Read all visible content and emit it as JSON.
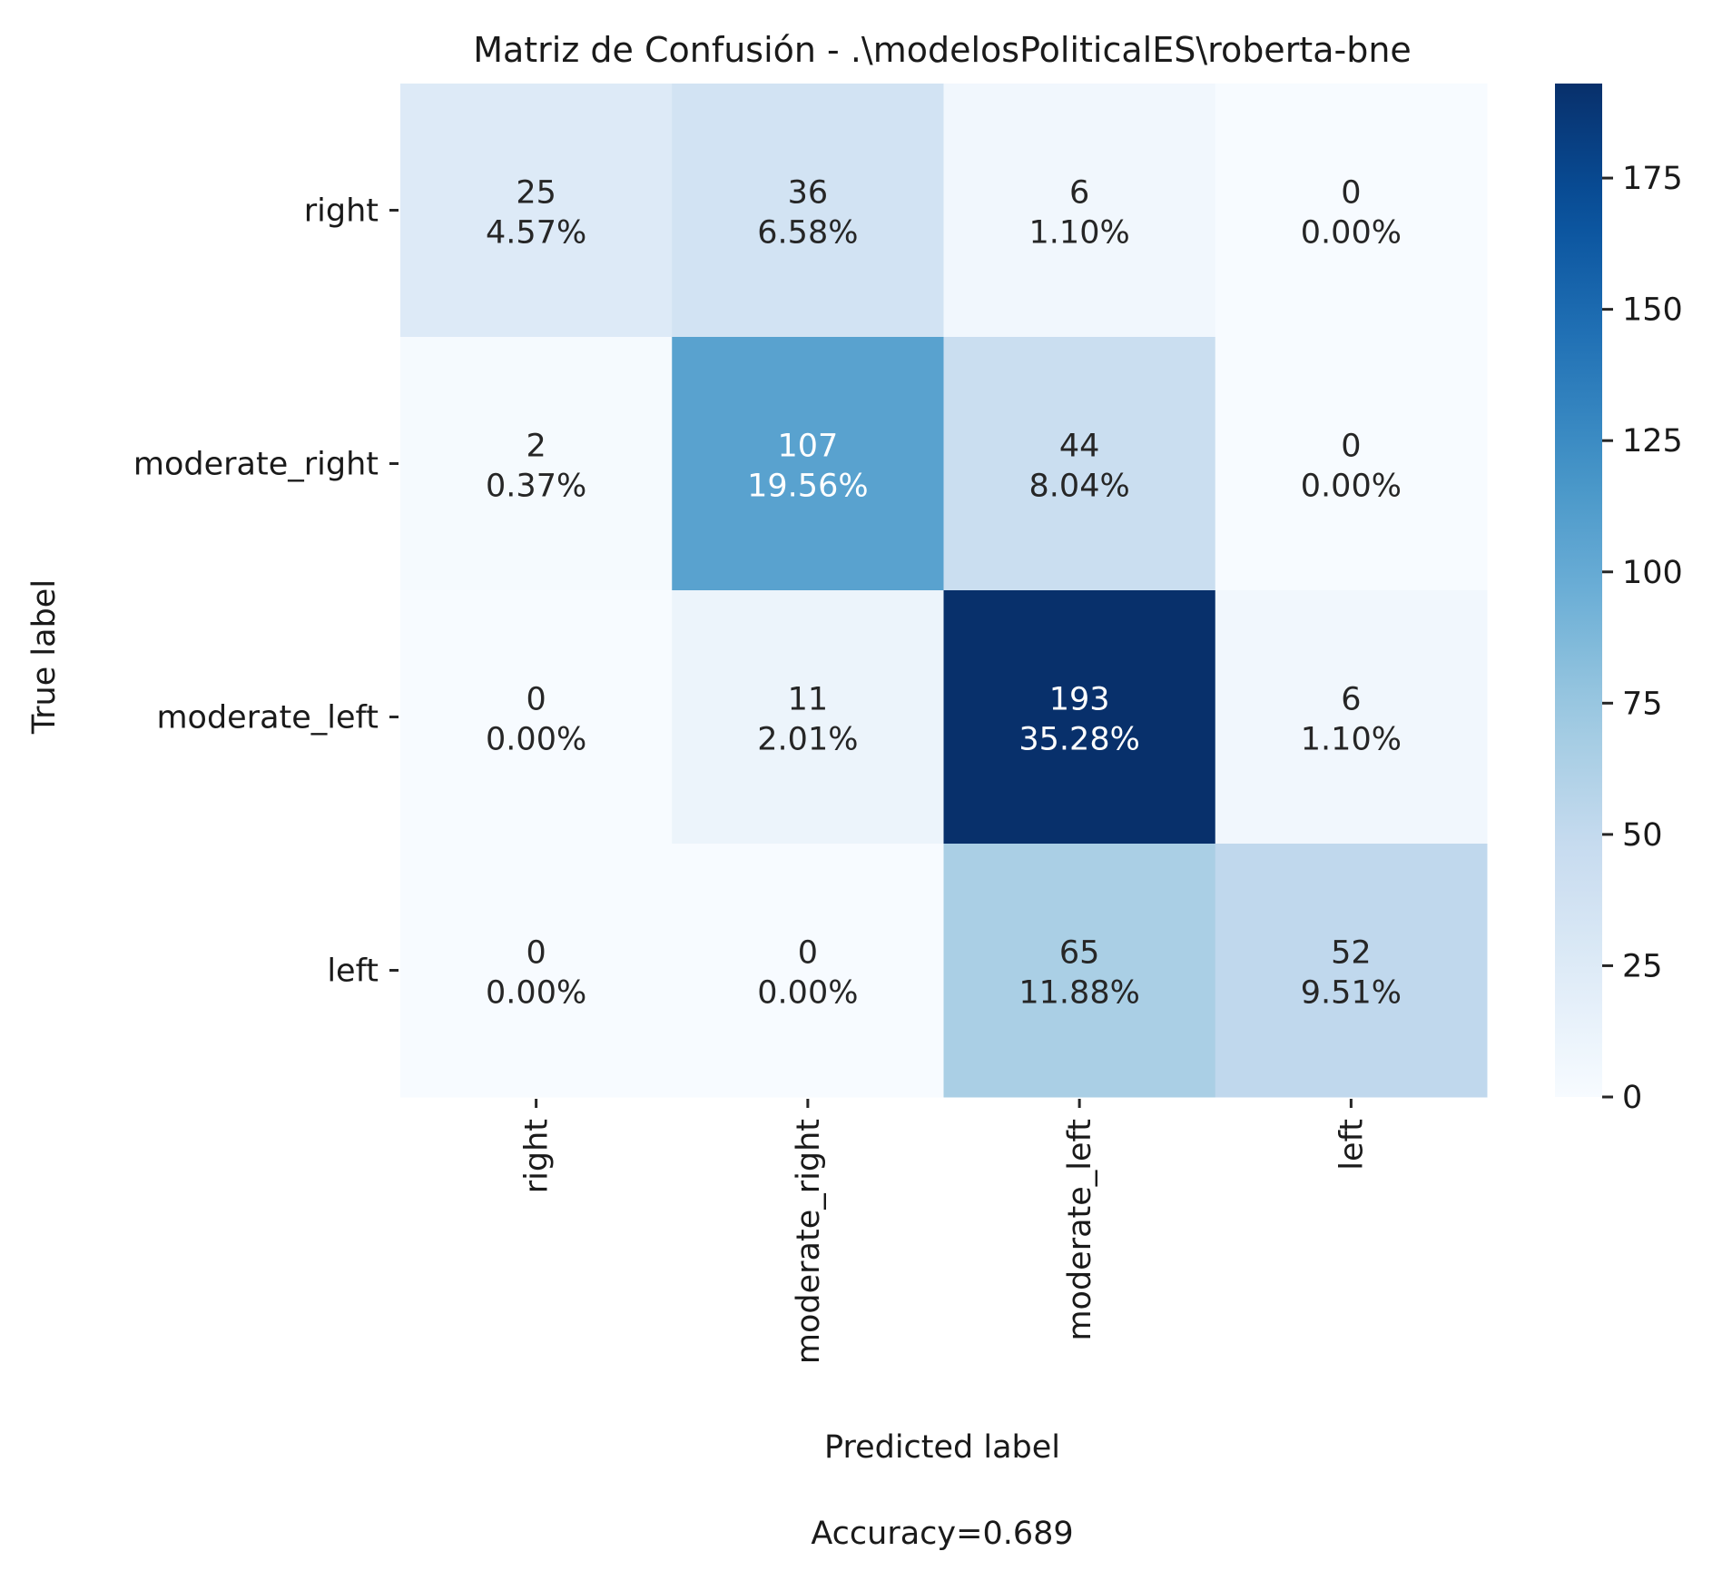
{
  "chart_data": {
    "type": "heatmap",
    "title": "Matriz de Confusión - .\\modelosPoliticalES\\roberta-bne",
    "xlabel": "Predicted label",
    "ylabel": "True label",
    "footer": "Accuracy=0.689",
    "row_labels": [
      "right",
      "moderate_right",
      "moderate_left",
      "left"
    ],
    "col_labels": [
      "right",
      "moderate_right",
      "moderate_left",
      "left"
    ],
    "counts": [
      [
        25,
        36,
        6,
        0
      ],
      [
        2,
        107,
        44,
        0
      ],
      [
        0,
        11,
        193,
        6
      ],
      [
        0,
        0,
        65,
        52
      ]
    ],
    "percentages": [
      [
        "4.57%",
        "6.58%",
        "1.10%",
        "0.00%"
      ],
      [
        "0.37%",
        "19.56%",
        "8.04%",
        "0.00%"
      ],
      [
        "0.00%",
        "2.01%",
        "35.28%",
        "1.10%"
      ],
      [
        "0.00%",
        "0.00%",
        "11.88%",
        "9.51%"
      ]
    ],
    "colorbar": {
      "colormap": "Blues",
      "range": [
        0,
        193
      ],
      "ticks": [
        0,
        25,
        50,
        75,
        100,
        125,
        150,
        175
      ]
    },
    "grid": false
  }
}
